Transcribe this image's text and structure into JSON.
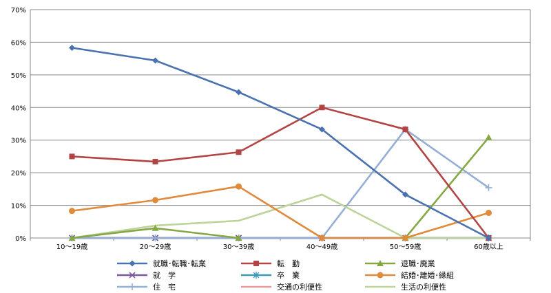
{
  "chart_data": {
    "type": "line",
    "categories": [
      "10～19歳",
      "20～29歳",
      "30～39歳",
      "40～49歳",
      "50～59歳",
      "60歳以上"
    ],
    "ylim": [
      0,
      70
    ],
    "yticks": [
      "0%",
      "10%",
      "20%",
      "30%",
      "40%",
      "50%",
      "60%",
      "70%"
    ],
    "grid": true,
    "legend_placement": "bottom",
    "series": [
      {
        "name": "就職･転職･転業",
        "color": "#4a72b0",
        "marker": "diamond",
        "values": [
          58.3,
          54.4,
          44.7,
          33.3,
          13.3,
          0
        ]
      },
      {
        "name": "転　勤",
        "color": "#b34444",
        "marker": "square",
        "values": [
          25.0,
          23.4,
          26.3,
          40.0,
          33.3,
          0
        ]
      },
      {
        "name": "退職･廃業",
        "color": "#86a844",
        "marker": "triangle",
        "values": [
          0,
          3.0,
          0,
          null,
          0,
          30.8
        ]
      },
      {
        "name": "就　学",
        "color": "#7a5a9a",
        "marker": "x",
        "values": [
          0,
          0,
          0,
          0,
          0,
          0
        ]
      },
      {
        "name": "卒　業",
        "color": "#3c9ab8",
        "marker": "asterisk",
        "values": [
          0,
          0,
          0,
          0,
          0,
          0
        ]
      },
      {
        "name": "結婚･離婚･縁組",
        "color": "#e08a3c",
        "marker": "circle",
        "values": [
          8.3,
          11.6,
          15.8,
          0,
          0,
          7.7
        ]
      },
      {
        "name": "住　宅",
        "color": "#94aed4",
        "marker": "plus",
        "values": [
          0,
          0,
          0,
          0,
          33.3,
          15.4
        ]
      },
      {
        "name": "交通の利便性",
        "color": "#e89a9a",
        "marker": "none",
        "values": [
          0,
          0,
          0,
          0,
          0,
          0
        ]
      },
      {
        "name": "生活の利便性",
        "color": "#bcd39a",
        "marker": "none",
        "values": [
          0,
          3.8,
          5.3,
          13.3,
          0,
          0
        ]
      }
    ]
  }
}
